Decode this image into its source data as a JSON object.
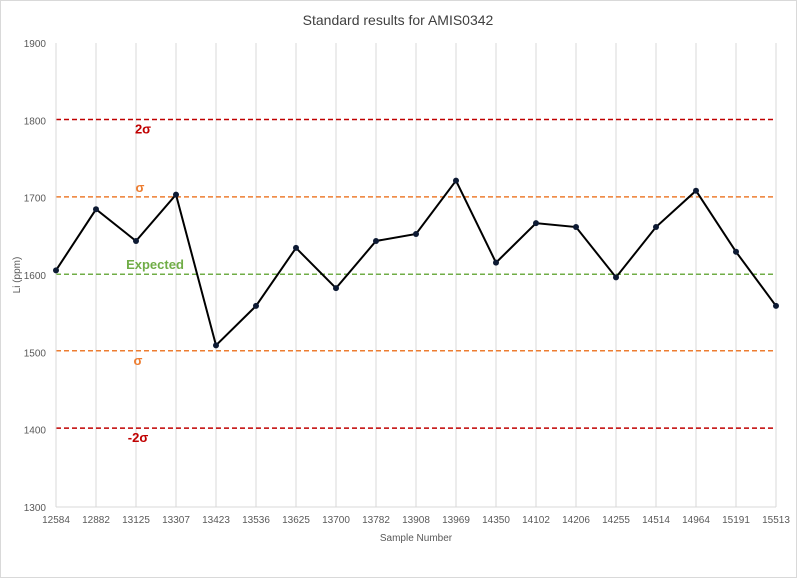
{
  "chart_data": {
    "type": "line",
    "title": "Standard results for AMIS0342",
    "xlabel": "Sample Number",
    "ylabel": "Li (ppm)",
    "ylim": [
      1300,
      1900
    ],
    "yticks": [
      1300,
      1400,
      1500,
      1600,
      1700,
      1800,
      1900
    ],
    "grid": "vertical",
    "categories": [
      "12584",
      "12882",
      "13125",
      "13307",
      "13423",
      "13536",
      "13625",
      "13700",
      "13782",
      "13908",
      "13969",
      "14350",
      "14102",
      "14206",
      "14255",
      "14514",
      "14964",
      "15191",
      "15513"
    ],
    "series": [
      {
        "values": [
          1606,
          1685,
          1644,
          1704,
          1509,
          1560,
          1635,
          1583,
          1644,
          1653,
          1722,
          1616,
          1667,
          1662,
          1597,
          1662,
          1709,
          1630,
          1560
        ],
        "color": "#000000",
        "marker_color": "#0d1a33"
      }
    ],
    "reference_lines": [
      {
        "label": "2σ",
        "value": 1801,
        "color": "#c00000"
      },
      {
        "label": "σ",
        "value": 1701,
        "color": "#ed7d31"
      },
      {
        "label": "Expected",
        "value": 1601,
        "color": "#70ad47"
      },
      {
        "label": "σ",
        "value": 1502,
        "color": "#ed7d31"
      },
      {
        "label": "-2σ",
        "value": 1402,
        "color": "#c00000"
      }
    ]
  }
}
